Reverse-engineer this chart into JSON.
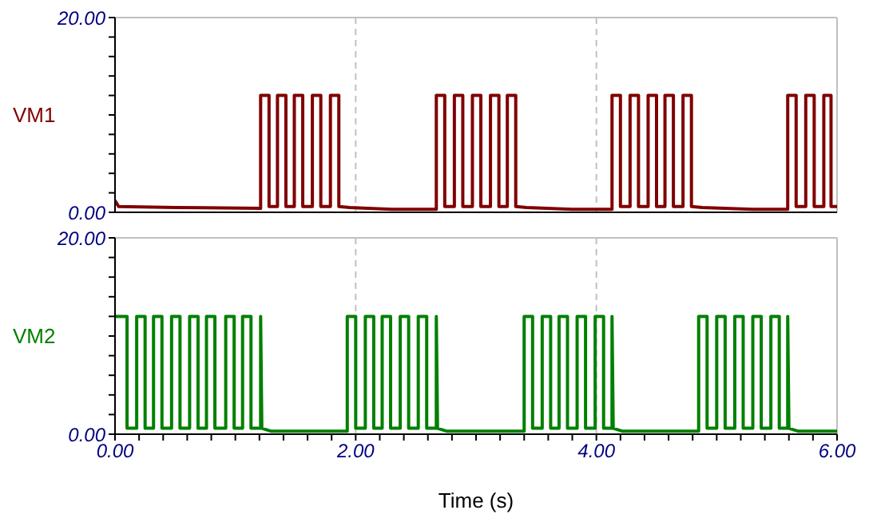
{
  "chart_data": [
    {
      "type": "line",
      "xlim": [
        0,
        6
      ],
      "xticks": [
        0,
        2,
        4,
        6
      ],
      "ylim": [
        0,
        20
      ],
      "yticks": [
        {
          "value": 0,
          "label": "0.00"
        },
        {
          "value": 2,
          "label": null
        },
        {
          "value": 4,
          "label": null
        },
        {
          "value": 6,
          "label": null
        },
        {
          "value": 8,
          "label": null
        },
        {
          "value": 10,
          "label": null
        },
        {
          "value": 12,
          "label": null
        },
        {
          "value": 14,
          "label": null
        },
        {
          "value": 16,
          "label": null
        },
        {
          "value": 18,
          "label": null
        },
        {
          "value": 20,
          "label": "20.00"
        }
      ],
      "tick_labels": "y",
      "grid": "x",
      "legend": false,
      "series": [
        {
          "name": "VM1",
          "color": "#800000",
          "x": [
            0,
            0.03,
            0.5,
            1.21,
            1.21,
            1.28,
            1.28,
            1.35,
            1.35,
            1.42,
            1.42,
            1.49,
            1.49,
            1.56,
            1.56,
            1.64,
            1.64,
            1.71,
            1.71,
            1.79,
            1.79,
            1.86,
            1.86,
            1.95,
            2.3,
            2.67,
            2.67,
            2.74,
            2.74,
            2.82,
            2.82,
            2.89,
            2.89,
            2.97,
            2.97,
            3.04,
            3.04,
            3.12,
            3.12,
            3.19,
            3.19,
            3.26,
            3.26,
            3.33,
            3.33,
            3.42,
            3.8,
            4.13,
            4.13,
            4.2,
            4.2,
            4.28,
            4.28,
            4.35,
            4.35,
            4.43,
            4.43,
            4.5,
            4.5,
            4.57,
            4.57,
            4.64,
            4.64,
            4.72,
            4.72,
            4.79,
            4.79,
            4.88,
            5.3,
            5.59,
            5.59,
            5.66,
            5.66,
            5.74,
            5.74,
            5.81,
            5.81,
            5.89,
            5.89,
            5.95,
            5.95,
            6
          ],
          "values": [
            1.2,
            0.6,
            0.5,
            0.4,
            12,
            12,
            0.6,
            0.6,
            12,
            12,
            0.6,
            0.6,
            12,
            12,
            0.6,
            0.6,
            12,
            12,
            0.6,
            0.6,
            12,
            12,
            0.6,
            0.5,
            0.3,
            0.3,
            12,
            12,
            0.6,
            0.6,
            12,
            12,
            0.6,
            0.6,
            12,
            12,
            0.6,
            0.6,
            12,
            12,
            0.6,
            0.6,
            12,
            12,
            0.6,
            0.5,
            0.3,
            0.3,
            12,
            12,
            0.6,
            0.6,
            12,
            12,
            0.6,
            0.6,
            12,
            12,
            0.6,
            0.6,
            12,
            12,
            0.6,
            0.6,
            12,
            12,
            0.6,
            0.5,
            0.3,
            0.3,
            12,
            12,
            0.6,
            0.6,
            12,
            12,
            0.6,
            0.6,
            12,
            12,
            0.6,
            0.6
          ]
        }
      ]
    },
    {
      "type": "line",
      "xlabel": "Time (s)",
      "xlim": [
        0,
        6
      ],
      "xticks": [
        {
          "value": 0,
          "label": "0.00"
        },
        {
          "value": 0.2,
          "label": null
        },
        {
          "value": 0.4,
          "label": null
        },
        {
          "value": 0.6,
          "label": null
        },
        {
          "value": 0.8,
          "label": null
        },
        {
          "value": 1,
          "label": null
        },
        {
          "value": 1.2,
          "label": null
        },
        {
          "value": 1.4,
          "label": null
        },
        {
          "value": 1.6,
          "label": null
        },
        {
          "value": 1.8,
          "label": null
        },
        {
          "value": 2,
          "label": "2.00"
        },
        {
          "value": 2.2,
          "label": null
        },
        {
          "value": 2.4,
          "label": null
        },
        {
          "value": 2.6,
          "label": null
        },
        {
          "value": 2.8,
          "label": null
        },
        {
          "value": 3,
          "label": null
        },
        {
          "value": 3.2,
          "label": null
        },
        {
          "value": 3.4,
          "label": null
        },
        {
          "value": 3.6,
          "label": null
        },
        {
          "value": 3.8,
          "label": null
        },
        {
          "value": 4,
          "label": "4.00"
        },
        {
          "value": 4.2,
          "label": null
        },
        {
          "value": 4.4,
          "label": null
        },
        {
          "value": 4.6,
          "label": null
        },
        {
          "value": 4.8,
          "label": null
        },
        {
          "value": 5,
          "label": null
        },
        {
          "value": 5.2,
          "label": null
        },
        {
          "value": 5.4,
          "label": null
        },
        {
          "value": 5.6,
          "label": null
        },
        {
          "value": 5.8,
          "label": null
        },
        {
          "value": 6,
          "label": "6.00"
        }
      ],
      "ylim": [
        0,
        20
      ],
      "yticks": [
        {
          "value": 0,
          "label": "0.00"
        },
        {
          "value": 2,
          "label": null
        },
        {
          "value": 4,
          "label": null
        },
        {
          "value": 6,
          "label": null
        },
        {
          "value": 8,
          "label": null
        },
        {
          "value": 10,
          "label": null
        },
        {
          "value": 12,
          "label": null
        },
        {
          "value": 14,
          "label": null
        },
        {
          "value": 16,
          "label": null
        },
        {
          "value": 18,
          "label": null
        },
        {
          "value": 20,
          "label": "20.00"
        }
      ],
      "grid": "x",
      "legend": false,
      "series": [
        {
          "name": "VM2",
          "color": "#008000",
          "x": [
            0,
            0.1,
            0.1,
            0.18,
            0.18,
            0.25,
            0.25,
            0.32,
            0.32,
            0.39,
            0.39,
            0.47,
            0.47,
            0.54,
            0.54,
            0.62,
            0.62,
            0.69,
            0.69,
            0.76,
            0.76,
            0.83,
            0.83,
            0.92,
            0.92,
            0.99,
            0.99,
            1.06,
            1.06,
            1.13,
            1.13,
            1.21,
            1.21,
            1.22,
            1.3,
            1.93,
            1.93,
            2,
            2,
            2.08,
            2.08,
            2.15,
            2.15,
            2.22,
            2.22,
            2.29,
            2.29,
            2.37,
            2.37,
            2.44,
            2.44,
            2.52,
            2.52,
            2.59,
            2.59,
            2.67,
            2.67,
            2.68,
            2.76,
            3.4,
            3.4,
            3.47,
            3.47,
            3.55,
            3.55,
            3.62,
            3.62,
            3.69,
            3.69,
            3.76,
            3.76,
            3.84,
            3.84,
            3.91,
            3.91,
            3.99,
            3.99,
            4.06,
            4.06,
            4.13,
            4.13,
            4.14,
            4.22,
            4.85,
            4.85,
            4.92,
            4.92,
            5,
            5,
            5.07,
            5.07,
            5.15,
            5.15,
            5.22,
            5.22,
            5.3,
            5.3,
            5.37,
            5.37,
            5.45,
            5.45,
            5.52,
            5.52,
            5.59,
            5.59,
            5.6,
            5.68,
            6
          ],
          "values": [
            12,
            12,
            0.6,
            0.6,
            12,
            12,
            0.6,
            0.6,
            12,
            12,
            0.6,
            0.6,
            12,
            12,
            0.6,
            0.6,
            12,
            12,
            0.6,
            0.6,
            12,
            12,
            0.6,
            0.6,
            12,
            12,
            0.6,
            0.6,
            12,
            12,
            0.6,
            0.6,
            12,
            0.6,
            0.3,
            0.3,
            12,
            12,
            0.6,
            0.6,
            12,
            12,
            0.6,
            0.6,
            12,
            12,
            0.6,
            0.6,
            12,
            12,
            0.6,
            0.6,
            12,
            12,
            0.6,
            0.6,
            12,
            0.6,
            0.3,
            0.3,
            12,
            12,
            0.6,
            0.6,
            12,
            12,
            0.6,
            0.6,
            12,
            12,
            0.6,
            0.6,
            12,
            12,
            0.6,
            0.6,
            12,
            12,
            0.6,
            0.6,
            12,
            0.6,
            0.3,
            0.3,
            12,
            12,
            0.6,
            0.6,
            12,
            12,
            0.6,
            0.6,
            12,
            12,
            0.6,
            0.6,
            12,
            12,
            0.6,
            0.6,
            12,
            12,
            0.6,
            0.6,
            12,
            0.6,
            0.3,
            0.3
          ]
        }
      ]
    }
  ]
}
